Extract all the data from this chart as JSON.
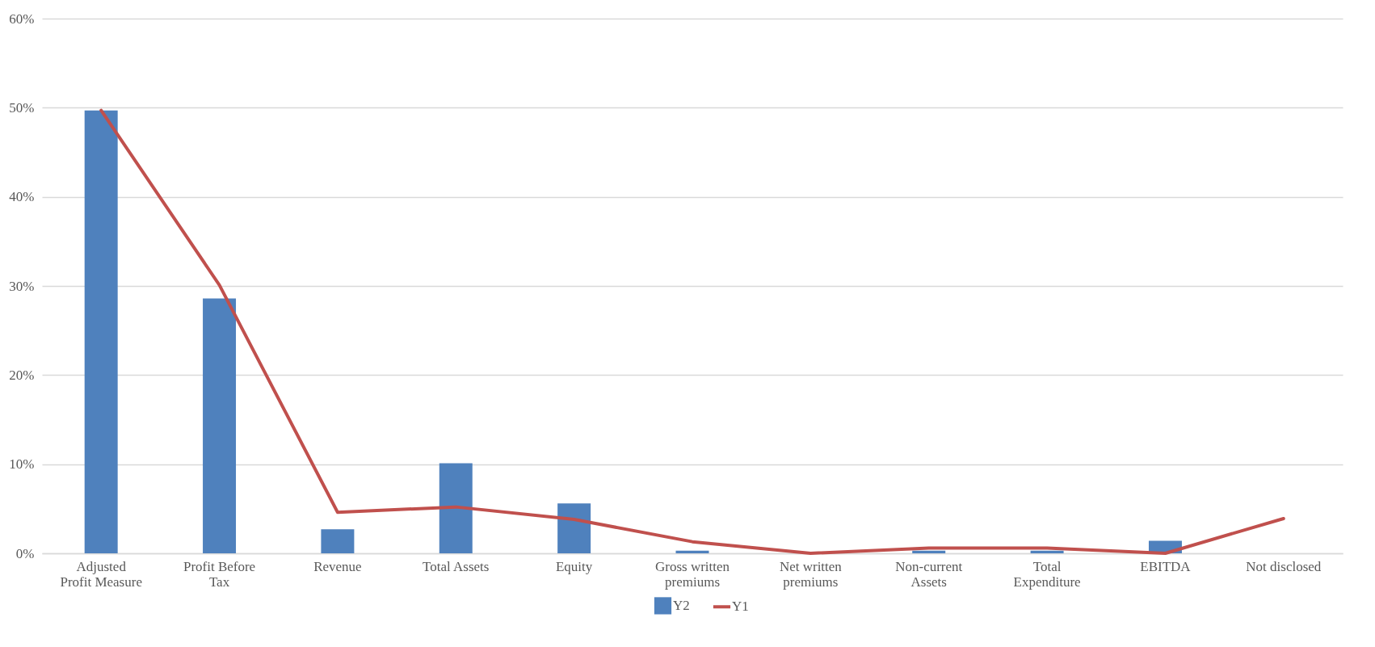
{
  "chart_data": {
    "type": "bar",
    "categories": [
      "Adjusted Profit Measure",
      "Profit Before Tax",
      "Revenue",
      "Total Assets",
      "Equity",
      "Gross written premiums",
      "Net written premiums",
      "Non-current Assets",
      "Total Expenditure",
      "EBITDA",
      "Not disclosed"
    ],
    "series": [
      {
        "name": "Y2",
        "color": "#4f81bd",
        "values": [
          49.7,
          28.6,
          2.7,
          10.1,
          5.6,
          0.3,
          0,
          0.3,
          0.3,
          1.4,
          0
        ]
      },
      {
        "name": "Y1",
        "type": "line",
        "color": "#c0504d",
        "values": [
          49.7,
          30.1,
          4.6,
          5.2,
          3.8,
          1.3,
          0,
          0.6,
          0.6,
          0,
          3.9
        ]
      }
    ],
    "ylim": [
      0,
      60
    ],
    "yticks": [
      {
        "value": 0,
        "label": "0%"
      },
      {
        "value": 10,
        "label": "10%"
      },
      {
        "value": 20,
        "label": "20%"
      },
      {
        "value": 30,
        "label": "30%"
      },
      {
        "value": 40,
        "label": "40%"
      },
      {
        "value": 50,
        "label": "50%"
      },
      {
        "value": 60,
        "label": "60%"
      }
    ],
    "grid": "y",
    "legend": "bottom"
  }
}
